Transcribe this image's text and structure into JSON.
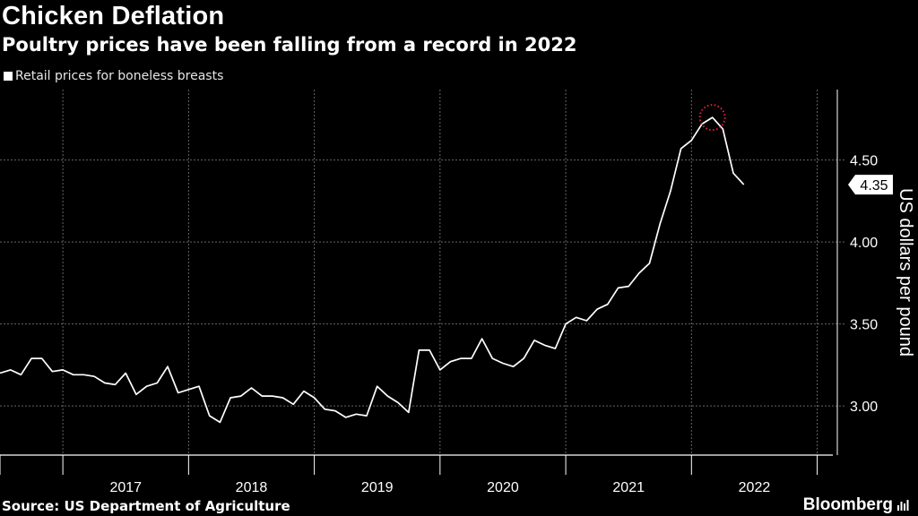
{
  "chart_data": {
    "type": "line",
    "title": "Chicken Deflation",
    "subtitle": "Poultry prices have been falling from a record in 2022",
    "legend": [
      "Retail prices for boneless breasts"
    ],
    "ylabel": "US dollars per pound",
    "xlabel": "",
    "ylim": [
      2.7,
      4.93
    ],
    "yticks": [
      "3.00",
      "3.50",
      "4.00",
      "4.50"
    ],
    "ytick_values": [
      3.0,
      3.5,
      4.0,
      4.5
    ],
    "xticks": [
      "2017",
      "2018",
      "2019",
      "2020",
      "2021",
      "2022"
    ],
    "last_value_label": "4.35",
    "highlight": "peak",
    "series": [
      {
        "name": "Retail prices for boneless breasts",
        "color": "#ffffff",
        "x_start": 2016.5,
        "x_step": 0.08333,
        "values": [
          3.2,
          3.22,
          3.19,
          3.29,
          3.29,
          3.21,
          3.22,
          3.19,
          3.19,
          3.18,
          3.14,
          3.13,
          3.2,
          3.07,
          3.12,
          3.14,
          3.24,
          3.08,
          3.1,
          3.12,
          2.94,
          2.9,
          3.05,
          3.06,
          3.11,
          3.06,
          3.06,
          3.05,
          3.01,
          3.09,
          3.05,
          2.98,
          2.97,
          2.93,
          2.95,
          2.94,
          3.12,
          3.06,
          3.02,
          2.96,
          3.34,
          3.34,
          3.22,
          3.27,
          3.29,
          3.29,
          3.41,
          3.29,
          3.26,
          3.24,
          3.29,
          3.4,
          3.37,
          3.35,
          3.5,
          3.54,
          3.52,
          3.59,
          3.62,
          3.72,
          3.73,
          3.81,
          3.87,
          4.11,
          4.31,
          4.57,
          4.62,
          4.72,
          4.76,
          4.69,
          4.42,
          4.35
        ]
      }
    ]
  },
  "footer": {
    "source": "Source: US Department of Agriculture",
    "brand": "Bloomberg"
  },
  "colors": {
    "background": "#000000",
    "line": "#ffffff",
    "grid": "#666666",
    "highlight": "#e0243a"
  }
}
